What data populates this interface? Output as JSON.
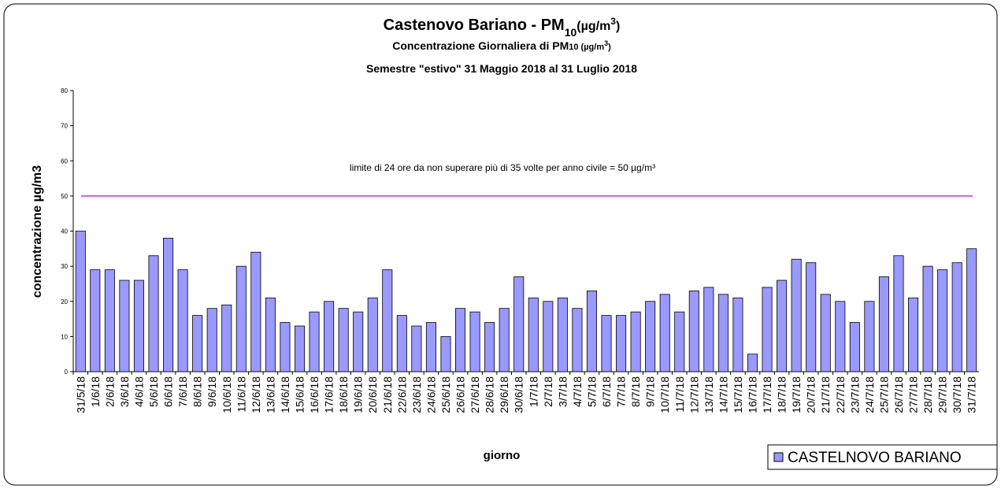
{
  "chart_data": {
    "type": "bar",
    "title": [
      "Castenovo Bariano - PM",
      "10",
      "(µg/m",
      "3",
      ")"
    ],
    "subtitle": [
      "Concentrazione Giornaliera di PM",
      "10 (µg/m",
      "3",
      ")"
    ],
    "subtitle2": "Semestre \"estivo\" 31 Maggio 2018 al 31 Luglio 2018",
    "x_label": "giorno",
    "y_label": "concentrazione µg/m3",
    "categories": [
      "31/5/18",
      "1/6/18",
      "2/6/18",
      "3/6/18",
      "4/6/18",
      "5/6/18",
      "6/6/18",
      "7/6/18",
      "8/6/18",
      "9/6/18",
      "10/6/18",
      "11/6/18",
      "12/6/18",
      "13/6/18",
      "14/6/18",
      "15/6/18",
      "16/6/18",
      "17/6/18",
      "18/6/18",
      "19/6/18",
      "20/6/18",
      "21/6/18",
      "22/6/18",
      "23/6/18",
      "24/6/18",
      "25/6/18",
      "26/6/18",
      "27/6/18",
      "28/6/18",
      "29/6/18",
      "30/6/18",
      "1/7/18",
      "2/7/18",
      "3/7/18",
      "4/7/18",
      "5/7/18",
      "6/7/18",
      "7/7/18",
      "8/7/18",
      "9/7/18",
      "10/7/18",
      "11/7/18",
      "12/7/18",
      "13/7/18",
      "14/7/18",
      "15/7/18",
      "16/7/18",
      "17/7/18",
      "18/7/18",
      "19/7/18",
      "20/7/18",
      "21/7/18",
      "22/7/18",
      "23/7/18",
      "24/7/18",
      "25/7/18",
      "26/7/18",
      "27/7/18",
      "28/7/18",
      "29/7/18",
      "30/7/18",
      "31/7/18"
    ],
    "series": [
      {
        "name": "CASTELNOVO BARIANO",
        "color": "#9999ff",
        "values": [
          40,
          29,
          29,
          26,
          26,
          33,
          38,
          29,
          16,
          18,
          19,
          30,
          34,
          21,
          14,
          13,
          17,
          20,
          18,
          17,
          21,
          29,
          16,
          13,
          14,
          10,
          18,
          17,
          14,
          18,
          27,
          21,
          20,
          21,
          18,
          23,
          16,
          16,
          17,
          20,
          22,
          17,
          23,
          24,
          22,
          21,
          5,
          24,
          26,
          32,
          31,
          22,
          20,
          14,
          20,
          27,
          33,
          21,
          30,
          29,
          31,
          35
        ]
      }
    ],
    "limit": {
      "value": 50,
      "color": "#cc00cc",
      "label": "limite di 24 ore da non superare più di 35 volte per anno civile = 50 µg/m³"
    },
    "ylim": [
      0,
      80
    ],
    "yticks": [
      0,
      10,
      20,
      30,
      40,
      50,
      60,
      70,
      80
    ],
    "legend": "bottom-right"
  }
}
